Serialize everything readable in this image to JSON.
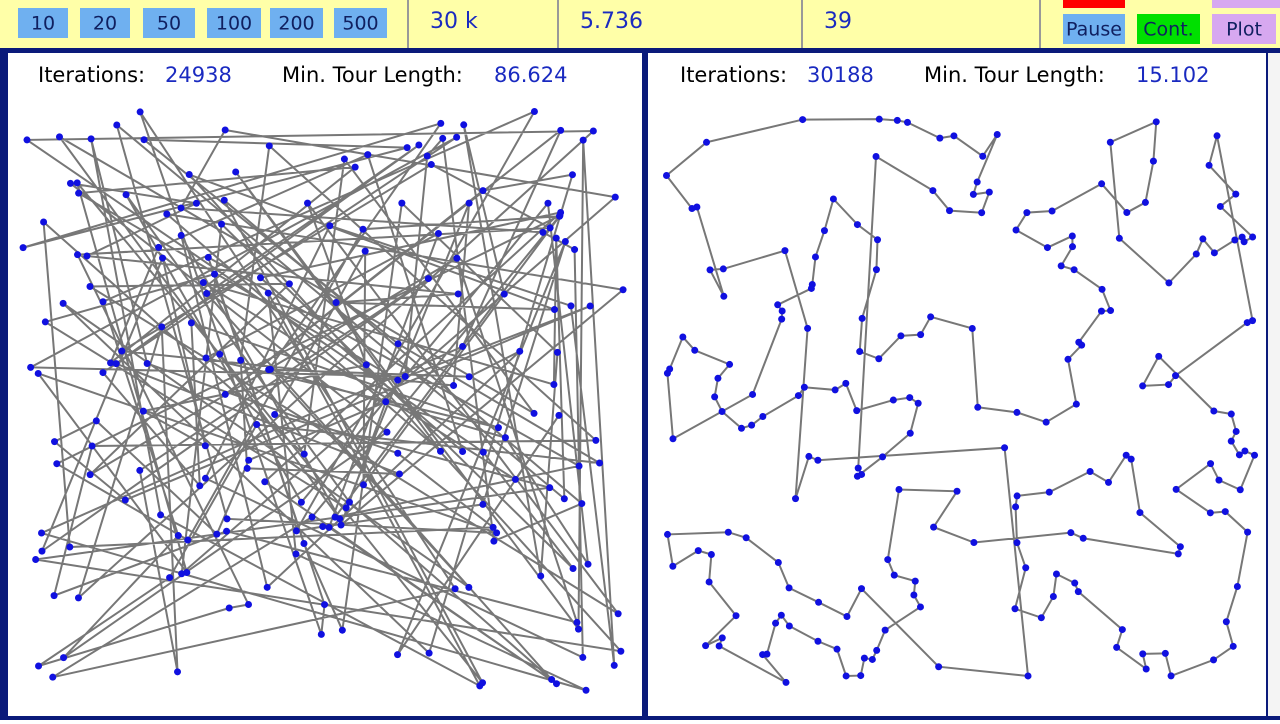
{
  "toolbar": {
    "buttons": [
      "10",
      "20",
      "50",
      "100",
      "200",
      "500"
    ],
    "stats": [
      "30 k",
      "5.736",
      "39"
    ],
    "controls": [
      "Pause",
      "Cont.",
      "Plot"
    ]
  },
  "panels": [
    {
      "iterations_label": "Iterations:",
      "iterations": 24938,
      "length_label": "Min. Tour Length:",
      "length": 86.624
    },
    {
      "iterations_label": "Iterations:",
      "iterations": 30188,
      "length_label": "Min. Tour Length:",
      "length": 15.102
    }
  ]
}
